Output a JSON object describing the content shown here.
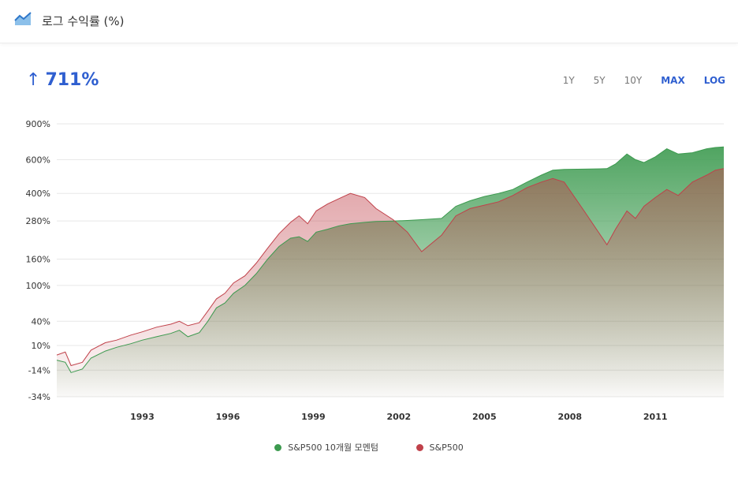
{
  "header": {
    "title": "로그 수익률 (%)",
    "icon": "area-chart-icon"
  },
  "summary": {
    "arrow": "↑",
    "value": "711%"
  },
  "ranges": [
    {
      "label": "1Y",
      "active": false
    },
    {
      "label": "5Y",
      "active": false
    },
    {
      "label": "10Y",
      "active": false
    },
    {
      "label": "MAX",
      "active": true
    },
    {
      "label": "LOG",
      "active": true
    }
  ],
  "colors": {
    "accent": "#2f5fd0",
    "momentum": "#3c9a4f",
    "sp500": "#c0414a"
  },
  "chart_data": {
    "type": "area",
    "scale": "log(1 + return)",
    "yticks": [
      {
        "value": 900,
        "label": "900%"
      },
      {
        "value": 600,
        "label": "600%"
      },
      {
        "value": 400,
        "label": "400%"
      },
      {
        "value": 280,
        "label": "280%"
      },
      {
        "value": 160,
        "label": "160%"
      },
      {
        "value": 100,
        "label": "100%"
      },
      {
        "value": 40,
        "label": "40%"
      },
      {
        "value": 10,
        "label": "10%"
      },
      {
        "value": -14,
        "label": "-14%"
      },
      {
        "value": -34,
        "label": "-34%"
      }
    ],
    "xticks": [
      "1993",
      "1996",
      "1999",
      "2002",
      "2005",
      "2008",
      "2011"
    ],
    "xlim": [
      1990.0,
      2013.4
    ],
    "ylim": [
      -34,
      900
    ],
    "grid": true,
    "legend_position": "bottom",
    "series": [
      {
        "name": "S&P500 10개월 모멘텀",
        "color": "#3c9a4f",
        "points": [
          [
            1990.0,
            -5
          ],
          [
            1990.3,
            -7
          ],
          [
            1990.5,
            -16
          ],
          [
            1990.9,
            -13
          ],
          [
            1991.2,
            -3
          ],
          [
            1991.7,
            4
          ],
          [
            1992.1,
            8
          ],
          [
            1992.6,
            12
          ],
          [
            1993.0,
            16
          ],
          [
            1993.5,
            20
          ],
          [
            1994.0,
            24
          ],
          [
            1994.3,
            28
          ],
          [
            1994.6,
            20
          ],
          [
            1995.0,
            25
          ],
          [
            1995.3,
            40
          ],
          [
            1995.6,
            60
          ],
          [
            1995.9,
            68
          ],
          [
            1996.2,
            85
          ],
          [
            1996.6,
            100
          ],
          [
            1997.0,
            125
          ],
          [
            1997.4,
            160
          ],
          [
            1997.8,
            195
          ],
          [
            1998.2,
            220
          ],
          [
            1998.5,
            225
          ],
          [
            1998.8,
            210
          ],
          [
            1999.1,
            240
          ],
          [
            1999.5,
            250
          ],
          [
            1999.9,
            262
          ],
          [
            2000.3,
            270
          ],
          [
            2000.8,
            275
          ],
          [
            2001.2,
            278
          ],
          [
            2001.8,
            280
          ],
          [
            2002.3,
            282
          ],
          [
            2002.8,
            285
          ],
          [
            2003.5,
            290
          ],
          [
            2004.0,
            340
          ],
          [
            2004.5,
            365
          ],
          [
            2005.0,
            385
          ],
          [
            2005.5,
            400
          ],
          [
            2006.0,
            420
          ],
          [
            2006.5,
            460
          ],
          [
            2007.0,
            500
          ],
          [
            2007.4,
            530
          ],
          [
            2007.8,
            535
          ],
          [
            2008.5,
            537
          ],
          [
            2009.3,
            540
          ],
          [
            2009.6,
            570
          ],
          [
            2010.0,
            640
          ],
          [
            2010.3,
            600
          ],
          [
            2010.6,
            580
          ],
          [
            2011.0,
            620
          ],
          [
            2011.4,
            680
          ],
          [
            2011.8,
            640
          ],
          [
            2012.3,
            650
          ],
          [
            2012.8,
            680
          ],
          [
            2013.1,
            690
          ],
          [
            2013.4,
            695
          ]
        ]
      },
      {
        "name": "S&P500",
        "color": "#c0414a",
        "points": [
          [
            1990.0,
            0
          ],
          [
            1990.3,
            3
          ],
          [
            1990.5,
            -10
          ],
          [
            1990.9,
            -7
          ],
          [
            1991.2,
            5
          ],
          [
            1991.7,
            13
          ],
          [
            1992.1,
            16
          ],
          [
            1992.6,
            22
          ],
          [
            1993.0,
            26
          ],
          [
            1993.5,
            32
          ],
          [
            1994.0,
            36
          ],
          [
            1994.3,
            40
          ],
          [
            1994.6,
            34
          ],
          [
            1995.0,
            38
          ],
          [
            1995.3,
            55
          ],
          [
            1995.6,
            75
          ],
          [
            1995.9,
            85
          ],
          [
            1996.2,
            105
          ],
          [
            1996.6,
            120
          ],
          [
            1997.0,
            150
          ],
          [
            1997.4,
            190
          ],
          [
            1997.8,
            235
          ],
          [
            1998.2,
            275
          ],
          [
            1998.5,
            300
          ],
          [
            1998.8,
            270
          ],
          [
            1999.1,
            320
          ],
          [
            1999.5,
            350
          ],
          [
            1999.9,
            375
          ],
          [
            2000.3,
            400
          ],
          [
            2000.8,
            380
          ],
          [
            2001.2,
            330
          ],
          [
            2001.8,
            285
          ],
          [
            2002.3,
            240
          ],
          [
            2002.8,
            180
          ],
          [
            2003.5,
            230
          ],
          [
            2004.0,
            300
          ],
          [
            2004.5,
            330
          ],
          [
            2005.0,
            345
          ],
          [
            2005.5,
            360
          ],
          [
            2006.0,
            390
          ],
          [
            2006.5,
            430
          ],
          [
            2007.0,
            460
          ],
          [
            2007.4,
            480
          ],
          [
            2007.8,
            460
          ],
          [
            2008.5,
            320
          ],
          [
            2009.3,
            200
          ],
          [
            2009.6,
            250
          ],
          [
            2010.0,
            320
          ],
          [
            2010.3,
            290
          ],
          [
            2010.6,
            340
          ],
          [
            2011.0,
            380
          ],
          [
            2011.4,
            420
          ],
          [
            2011.8,
            390
          ],
          [
            2012.3,
            460
          ],
          [
            2012.8,
            500
          ],
          [
            2013.1,
            530
          ],
          [
            2013.4,
            540
          ]
        ]
      }
    ]
  }
}
